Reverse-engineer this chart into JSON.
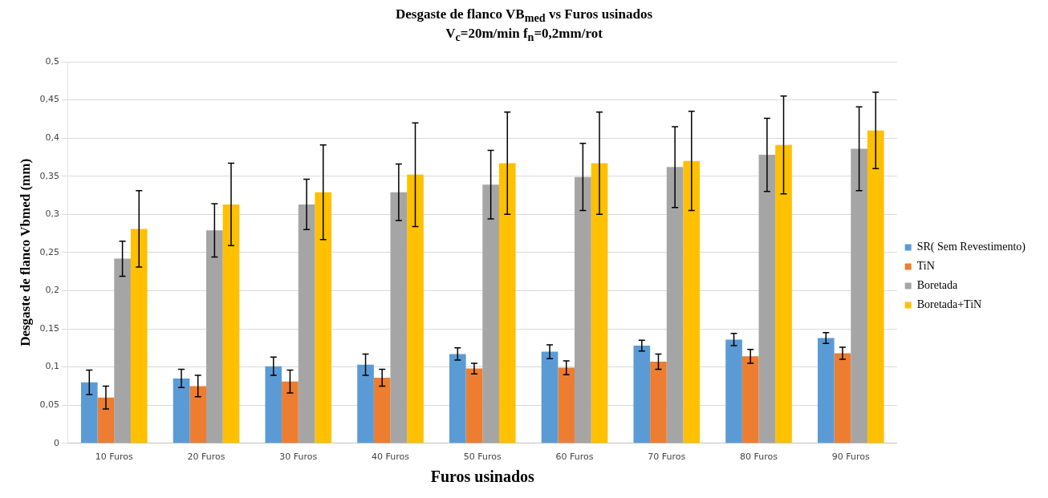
{
  "chart_data": {
    "type": "bar",
    "title": "Desgaste de flanco VB$_{med}$ vs Furos usinados",
    "subtitle": "V$_{c}$=20m/min  f$_{n}$=0,2mm/rot",
    "xlabel": "Furos usinados",
    "ylabel": "Desgaste de flanco Vbmed (mm)",
    "categories": [
      "10 Furos",
      "20 Furos",
      "30 Furos",
      "40 Furos",
      "50 Furos",
      "60 Furos",
      "70 Furos",
      "80 Furos",
      "90 Furos"
    ],
    "series": [
      {
        "name": "SR( Sem Revestimento)",
        "color": "#5b9bd5",
        "values": [
          0.08,
          0.085,
          0.101,
          0.103,
          0.117,
          0.12,
          0.128,
          0.136,
          0.138
        ],
        "errors": [
          0.016,
          0.012,
          0.012,
          0.014,
          0.008,
          0.009,
          0.007,
          0.008,
          0.007
        ]
      },
      {
        "name": "TiN",
        "color": "#ed7d31",
        "values": [
          0.06,
          0.075,
          0.081,
          0.086,
          0.098,
          0.099,
          0.107,
          0.114,
          0.118
        ],
        "errors": [
          0.015,
          0.014,
          0.015,
          0.011,
          0.007,
          0.009,
          0.01,
          0.009,
          0.008
        ]
      },
      {
        "name": "Boretada",
        "color": "#a5a5a5",
        "values": [
          0.242,
          0.279,
          0.313,
          0.329,
          0.339,
          0.349,
          0.362,
          0.378,
          0.386
        ],
        "errors": [
          0.023,
          0.035,
          0.033,
          0.037,
          0.045,
          0.044,
          0.053,
          0.048,
          0.055
        ]
      },
      {
        "name": "Boretada+TiN",
        "color": "#ffc000",
        "values": [
          0.281,
          0.313,
          0.329,
          0.352,
          0.367,
          0.367,
          0.37,
          0.391,
          0.41
        ],
        "errors": [
          0.05,
          0.054,
          0.062,
          0.068,
          0.067,
          0.067,
          0.065,
          0.064,
          0.05
        ]
      }
    ],
    "ylim": [
      0,
      0.5
    ],
    "yticks": [
      0,
      {
        "value": 0.05,
        "label": "0,05"
      },
      {
        "value": 0.1,
        "label": "0,1"
      },
      {
        "value": 0.15,
        "label": "0,15"
      },
      {
        "value": 0.2,
        "label": "0,2"
      },
      {
        "value": 0.25,
        "label": "0,25"
      },
      {
        "value": 0.3,
        "label": "0,3"
      },
      {
        "value": 0.35,
        "label": "0,35"
      },
      {
        "value": 0.4,
        "label": "0,4"
      },
      {
        "value": 0.45,
        "label": "0,45"
      },
      {
        "value": 0.5,
        "label": "0,5"
      }
    ],
    "grid": "y",
    "legend": "right"
  }
}
